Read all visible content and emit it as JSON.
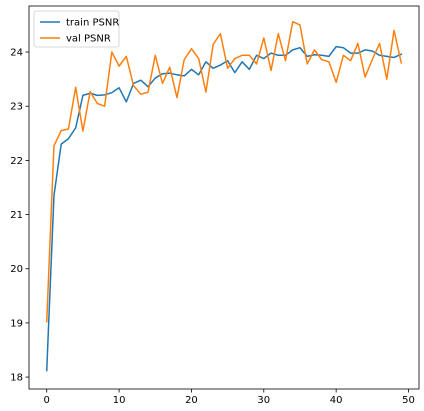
{
  "chart_data": {
    "type": "line",
    "title": "",
    "xlabel": "",
    "ylabel": "",
    "xlim": [
      -2.45,
      51.45
    ],
    "ylim": [
      17.78,
      24.85
    ],
    "xticks": [
      0,
      10,
      20,
      30,
      40,
      50
    ],
    "yticks": [
      18,
      19,
      20,
      21,
      22,
      23,
      24
    ],
    "grid": false,
    "legend_position": "upper-left",
    "x": [
      0,
      1,
      2,
      3,
      4,
      5,
      6,
      7,
      8,
      9,
      10,
      11,
      12,
      13,
      14,
      15,
      16,
      17,
      18,
      19,
      20,
      21,
      22,
      23,
      24,
      25,
      26,
      27,
      28,
      29,
      30,
      31,
      32,
      33,
      34,
      35,
      36,
      37,
      38,
      39,
      40,
      41,
      42,
      43,
      44,
      45,
      46,
      47,
      48,
      49
    ],
    "series": [
      {
        "name": "train PSNR",
        "color": "#1f77b4",
        "values": [
          18.12,
          21.35,
          22.3,
          22.4,
          22.6,
          23.2,
          23.24,
          23.2,
          23.21,
          23.25,
          23.34,
          23.08,
          23.42,
          23.48,
          23.36,
          23.52,
          23.6,
          23.61,
          23.58,
          23.56,
          23.68,
          23.58,
          23.82,
          23.7,
          23.76,
          23.84,
          23.62,
          23.82,
          23.68,
          23.94,
          23.88,
          23.98,
          23.94,
          23.94,
          24.04,
          24.08,
          23.92,
          23.95,
          23.94,
          23.92,
          24.1,
          24.08,
          23.98,
          23.98,
          24.04,
          24.02,
          23.94,
          23.92,
          23.9,
          23.96
        ]
      },
      {
        "name": "val PSNR",
        "color": "#ff7f0e",
        "values": [
          19.02,
          22.27,
          22.55,
          22.58,
          23.35,
          22.54,
          23.27,
          23.05,
          23.0,
          24.0,
          23.74,
          23.92,
          23.38,
          23.22,
          23.26,
          23.94,
          23.42,
          23.72,
          23.16,
          23.86,
          24.06,
          23.88,
          23.26,
          24.14,
          24.34,
          23.7,
          23.88,
          23.94,
          23.94,
          23.78,
          24.26,
          23.66,
          24.34,
          23.84,
          24.56,
          24.5,
          23.78,
          24.04,
          23.86,
          23.82,
          23.44,
          23.94,
          23.84,
          24.16,
          23.54,
          23.86,
          24.16,
          23.5,
          24.4,
          23.8
        ]
      }
    ]
  }
}
